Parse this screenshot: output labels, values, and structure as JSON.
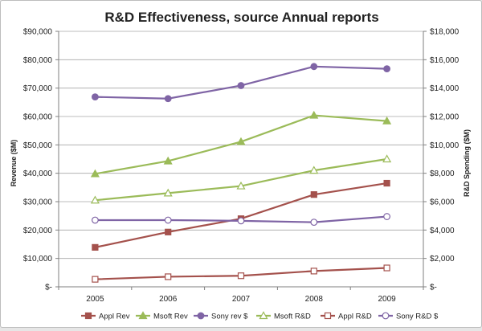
{
  "chart_data": {
    "type": "line",
    "title": "R&D Effectiveness, source Annual reports",
    "categories": [
      "2005",
      "2006",
      "2007",
      "2008",
      "2009"
    ],
    "y_left": {
      "label": "Revenue ($M)",
      "lim": [
        0,
        90000
      ],
      "ticks": [
        0,
        10000,
        20000,
        30000,
        40000,
        50000,
        60000,
        70000,
        80000,
        90000
      ],
      "tick_labels": [
        "$-",
        "$10,000",
        "$20,000",
        "$30,000",
        "$40,000",
        "$50,000",
        "$60,000",
        "$70,000",
        "$80,000",
        "$90,000"
      ]
    },
    "y_right": {
      "label": "R&D Spending ($M)",
      "lim": [
        0,
        18000
      ],
      "ticks": [
        0,
        2000,
        4000,
        6000,
        8000,
        10000,
        12000,
        14000,
        16000,
        18000
      ],
      "tick_labels": [
        "$-",
        "$2,000",
        "$4,000",
        "$6,000",
        "$8,000",
        "$10,000",
        "$12,000",
        "$14,000",
        "$16,000",
        "$18,000"
      ]
    },
    "grid": true,
    "legend_position": "bottom",
    "series": [
      {
        "name": "Appl Rev",
        "axis": "left",
        "values": [
          13900,
          19300,
          24000,
          32500,
          36500
        ],
        "color": "#a4514c",
        "marker": "square-filled"
      },
      {
        "name": "Msoft Rev",
        "axis": "left",
        "values": [
          39800,
          44300,
          51100,
          60400,
          58400
        ],
        "color": "#9bbb59",
        "marker": "triangle-filled"
      },
      {
        "name": "Sony rev $",
        "axis": "left",
        "values": [
          66900,
          66300,
          70900,
          77600,
          76800
        ],
        "color": "#7f64a5",
        "marker": "circle-filled"
      },
      {
        "name": "Msoft R&D",
        "axis": "right",
        "values": [
          6100,
          6600,
          7100,
          8200,
          9000
        ],
        "color": "#9bbb59",
        "marker": "triangle-open"
      },
      {
        "name": "Appl R&D",
        "axis": "right",
        "values": [
          530,
          710,
          780,
          1110,
          1330
        ],
        "color": "#a4514c",
        "marker": "square-open"
      },
      {
        "name": "Sony R&D $",
        "axis": "right",
        "values": [
          4700,
          4700,
          4650,
          4550,
          4950
        ],
        "color": "#7f64a5",
        "marker": "circle-open"
      }
    ]
  }
}
